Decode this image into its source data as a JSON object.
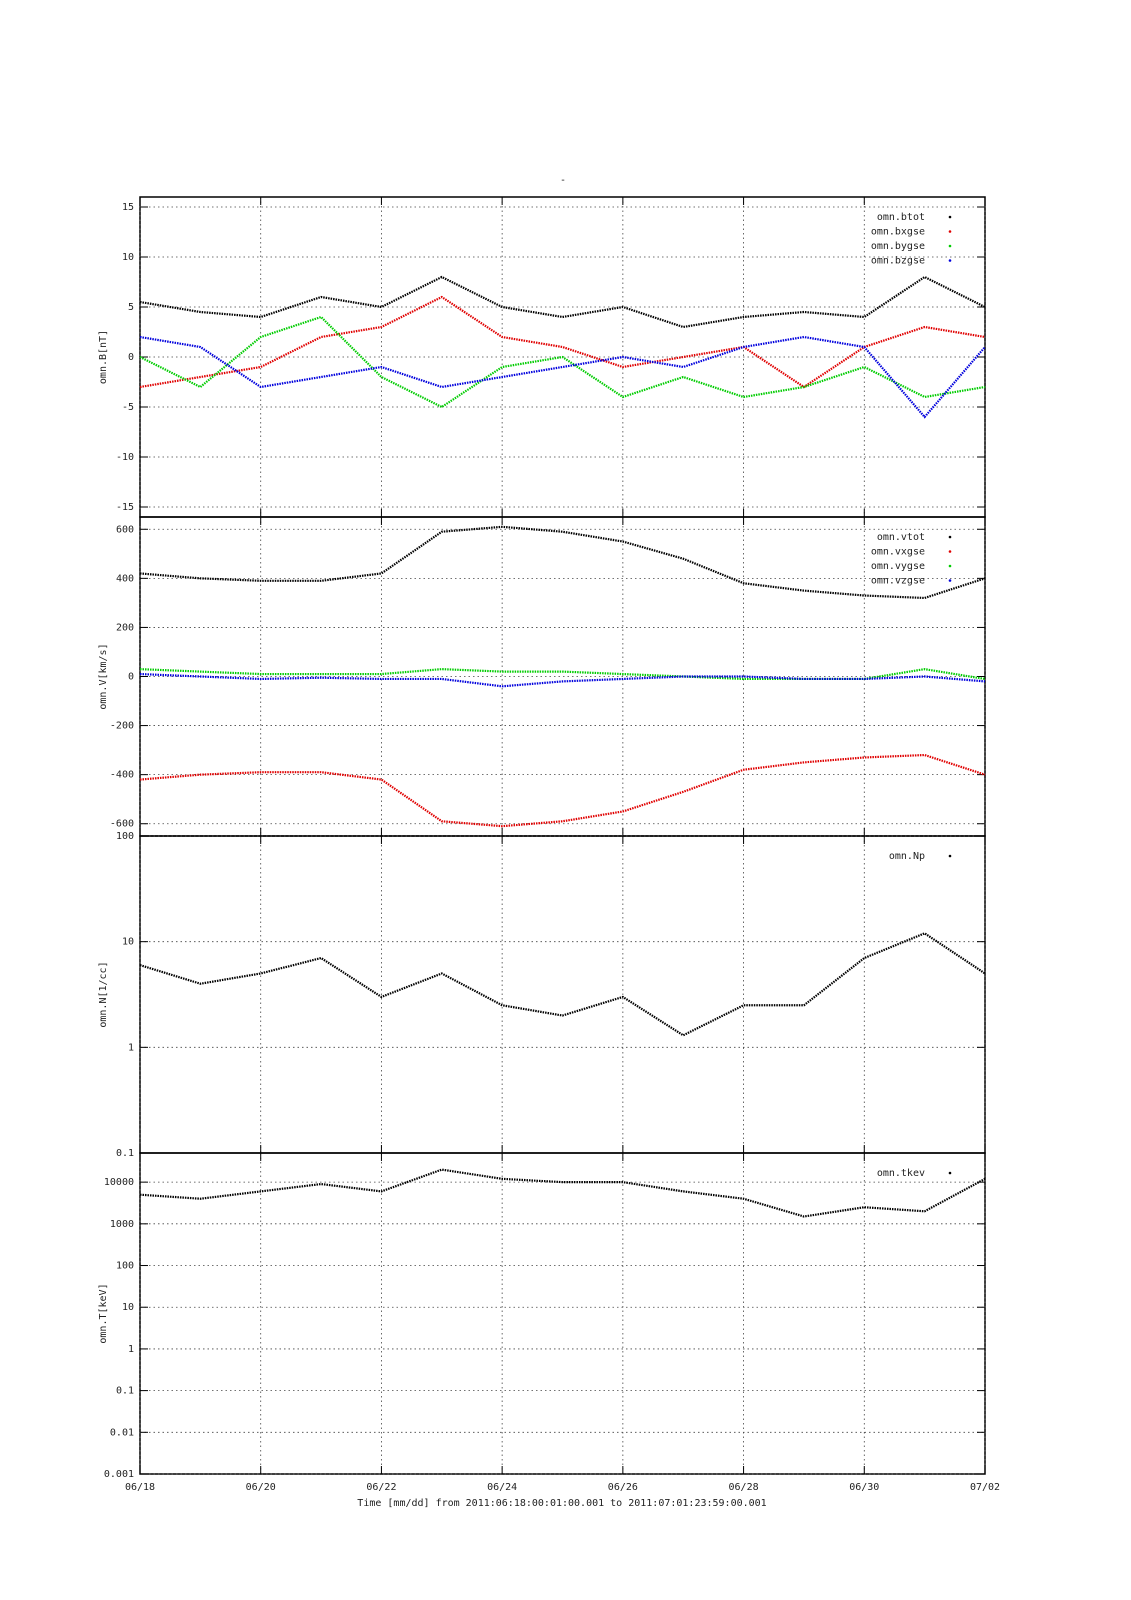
{
  "chart_data": [
    {
      "type": "line",
      "title": "-",
      "ylabel": "omn.B[nT]",
      "x": [
        "06/18",
        "06/19",
        "06/20",
        "06/21",
        "06/22",
        "06/23",
        "06/24",
        "06/25",
        "06/26",
        "06/27",
        "06/28",
        "06/29",
        "06/30",
        "07/01",
        "07/02"
      ],
      "xlim": [
        "06/18",
        "07/02"
      ],
      "xticks": [
        "06/18",
        "06/20",
        "06/22",
        "06/24",
        "06/26",
        "06/28",
        "06/30",
        "07/02"
      ],
      "ylim": [
        -16,
        16
      ],
      "yticks": [
        -15,
        -10,
        -5,
        0,
        5,
        10,
        15
      ],
      "grid": true,
      "legend": "upper right",
      "series": [
        {
          "name": "omn.btot",
          "color": "#000000",
          "values": [
            5.5,
            4.5,
            4,
            6,
            5,
            8,
            5,
            4,
            5,
            3,
            4,
            4.5,
            4,
            8,
            5
          ]
        },
        {
          "name": "omn.bxgse",
          "color": "#e00000",
          "values": [
            -3,
            -2,
            -1,
            2,
            3,
            6,
            2,
            1,
            -1,
            0,
            1,
            -3,
            1,
            3,
            2
          ]
        },
        {
          "name": "omn.bygse",
          "color": "#00cc00",
          "values": [
            0,
            -3,
            2,
            4,
            -2,
            -5,
            -1,
            0,
            -4,
            -2,
            -4,
            -3,
            -1,
            -4,
            -3
          ]
        },
        {
          "name": "omn.bzgse",
          "color": "#0000dd",
          "values": [
            2,
            1,
            -3,
            -2,
            -1,
            -3,
            -2,
            -1,
            0,
            -1,
            1,
            2,
            1,
            -6,
            1
          ]
        }
      ]
    },
    {
      "type": "line",
      "ylabel": "omn.V[km/s]",
      "x": [
        "06/18",
        "06/19",
        "06/20",
        "06/21",
        "06/22",
        "06/23",
        "06/24",
        "06/25",
        "06/26",
        "06/27",
        "06/28",
        "06/29",
        "06/30",
        "07/01",
        "07/02"
      ],
      "xlim": [
        "06/18",
        "07/02"
      ],
      "xticks": [
        "06/18",
        "06/20",
        "06/22",
        "06/24",
        "06/26",
        "06/28",
        "06/30",
        "07/02"
      ],
      "ylim": [
        -650,
        650
      ],
      "yticks": [
        -600,
        -400,
        -200,
        0,
        200,
        400,
        600
      ],
      "grid": true,
      "legend": "upper right",
      "series": [
        {
          "name": "omn.vtot",
          "color": "#000000",
          "values": [
            420,
            400,
            390,
            390,
            420,
            590,
            610,
            590,
            550,
            480,
            380,
            350,
            330,
            320,
            400
          ]
        },
        {
          "name": "omn.vxgse",
          "color": "#e00000",
          "values": [
            -420,
            -400,
            -390,
            -390,
            -420,
            -590,
            -610,
            -590,
            -550,
            -470,
            -380,
            -350,
            -330,
            -320,
            -400
          ]
        },
        {
          "name": "omn.vygse",
          "color": "#00cc00",
          "values": [
            30,
            20,
            10,
            10,
            10,
            30,
            20,
            20,
            10,
            0,
            -10,
            -10,
            -10,
            30,
            -10
          ]
        },
        {
          "name": "omn.vzgse",
          "color": "#0000dd",
          "values": [
            10,
            0,
            -10,
            -5,
            -10,
            -10,
            -40,
            -20,
            -10,
            0,
            0,
            -10,
            -10,
            0,
            -20
          ]
        }
      ]
    },
    {
      "type": "line",
      "ylabel": "omn.N[1/cc]",
      "log": true,
      "x": [
        "06/18",
        "06/19",
        "06/20",
        "06/21",
        "06/22",
        "06/23",
        "06/24",
        "06/25",
        "06/26",
        "06/27",
        "06/28",
        "06/29",
        "06/30",
        "07/01",
        "07/02"
      ],
      "xlim": [
        "06/18",
        "07/02"
      ],
      "xticks": [
        "06/18",
        "06/20",
        "06/22",
        "06/24",
        "06/26",
        "06/28",
        "06/30",
        "07/02"
      ],
      "ylim": [
        0.1,
        100
      ],
      "yticks": [
        0.1,
        1,
        10,
        100
      ],
      "grid": true,
      "legend": "upper right",
      "series": [
        {
          "name": "omn.Np",
          "color": "#000000",
          "values": [
            6,
            4,
            5,
            7,
            3,
            5,
            2.5,
            2,
            3,
            1.3,
            2.5,
            2.5,
            7,
            12,
            5
          ]
        }
      ]
    },
    {
      "type": "line",
      "ylabel": "omn.T[keV]",
      "log": true,
      "xlabel": "Time [mm/dd]  from 2011:06:18:00:01:00.001  to  2011:07:01:23:59:00.001",
      "x": [
        "06/18",
        "06/19",
        "06/20",
        "06/21",
        "06/22",
        "06/23",
        "06/24",
        "06/25",
        "06/26",
        "06/27",
        "06/28",
        "06/29",
        "06/30",
        "07/01",
        "07/02"
      ],
      "xlim": [
        "06/18",
        "07/02"
      ],
      "xticks": [
        "06/18",
        "06/20",
        "06/22",
        "06/24",
        "06/26",
        "06/28",
        "06/30",
        "07/02"
      ],
      "ylim": [
        0.001,
        50000
      ],
      "yticks": [
        0.001,
        0.01,
        0.1,
        1,
        10,
        100,
        1000,
        10000
      ],
      "grid": true,
      "legend": "upper right",
      "series": [
        {
          "name": "omn.tkev",
          "color": "#000000",
          "values": [
            5000,
            4000,
            6000,
            9000,
            6000,
            20000,
            12000,
            10000,
            10000,
            6000,
            4000,
            1500,
            2500,
            2000,
            12000
          ]
        }
      ]
    }
  ]
}
